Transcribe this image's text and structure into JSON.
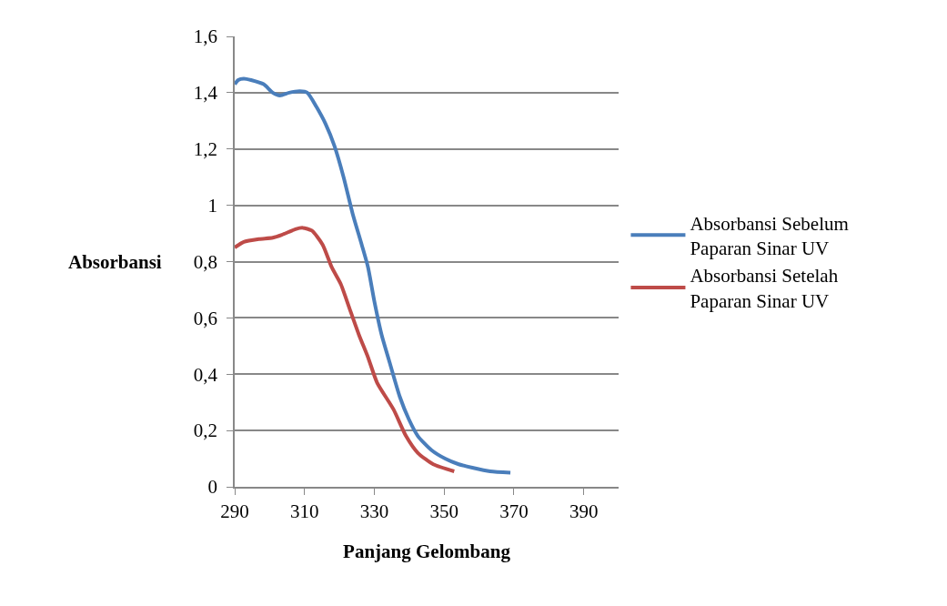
{
  "chart_data": {
    "type": "line",
    "xlabel": "Panjang Gelombang",
    "ylabel": "Absorbansi",
    "series": [
      {
        "name": "Absorbansi Sebelum Paparan Sinar UV",
        "color": "#4a7ebb",
        "x": [
          290,
          291.0,
          292.6,
          294.7,
          298.3,
          300.9,
          303.0,
          305.6,
          308.7,
          310.8,
          313.4,
          316.0,
          318.6,
          321.2,
          323.8,
          326.4,
          328.2,
          330.0,
          332.1,
          334.2,
          337.3,
          339.9,
          342.5,
          346.4,
          350.3,
          354.2,
          358.1,
          363.2,
          369.0
        ],
        "values": [
          1.43,
          1.445,
          1.45,
          1.445,
          1.43,
          1.4,
          1.39,
          1.4,
          1.405,
          1.4,
          1.35,
          1.29,
          1.21,
          1.1,
          0.97,
          0.86,
          0.78,
          0.66,
          0.54,
          0.45,
          0.32,
          0.24,
          0.18,
          0.13,
          0.1,
          0.08,
          0.068,
          0.055,
          0.05
        ]
      },
      {
        "name": "Absorbansi Setelah Paparan Sinar UV",
        "color": "#be4b48",
        "x": [
          290,
          292.6,
          297.0,
          300.9,
          303.5,
          307.4,
          309.5,
          312.1,
          315.2,
          317.8,
          320.4,
          323.0,
          325.6,
          328.2,
          330.8,
          335.5,
          339.1,
          342.5,
          346.9,
          352.9
        ],
        "values": [
          0.85,
          0.87,
          0.88,
          0.885,
          0.895,
          0.915,
          0.92,
          0.91,
          0.86,
          0.78,
          0.72,
          0.63,
          0.54,
          0.46,
          0.37,
          0.275,
          0.18,
          0.12,
          0.08,
          0.055
        ]
      }
    ],
    "xlim": [
      290,
      400
    ],
    "xticks": [
      290,
      310,
      330,
      350,
      370,
      390
    ],
    "ylim": [
      0,
      1.6
    ],
    "yticks": [
      0,
      {
        "value": 0.2,
        "label": "0,2"
      },
      {
        "value": 0.4,
        "label": "0,4"
      },
      {
        "value": 0.6,
        "label": "0,6"
      },
      {
        "value": 0.8,
        "label": "0,8"
      },
      1,
      {
        "value": 1.2,
        "label": "1,2"
      },
      {
        "value": 1.4,
        "label": "1,4"
      },
      {
        "value": 1.6,
        "label": "1,6"
      }
    ],
    "grid": "y",
    "legend": "right",
    "marker": "none",
    "line_style": "solid"
  }
}
